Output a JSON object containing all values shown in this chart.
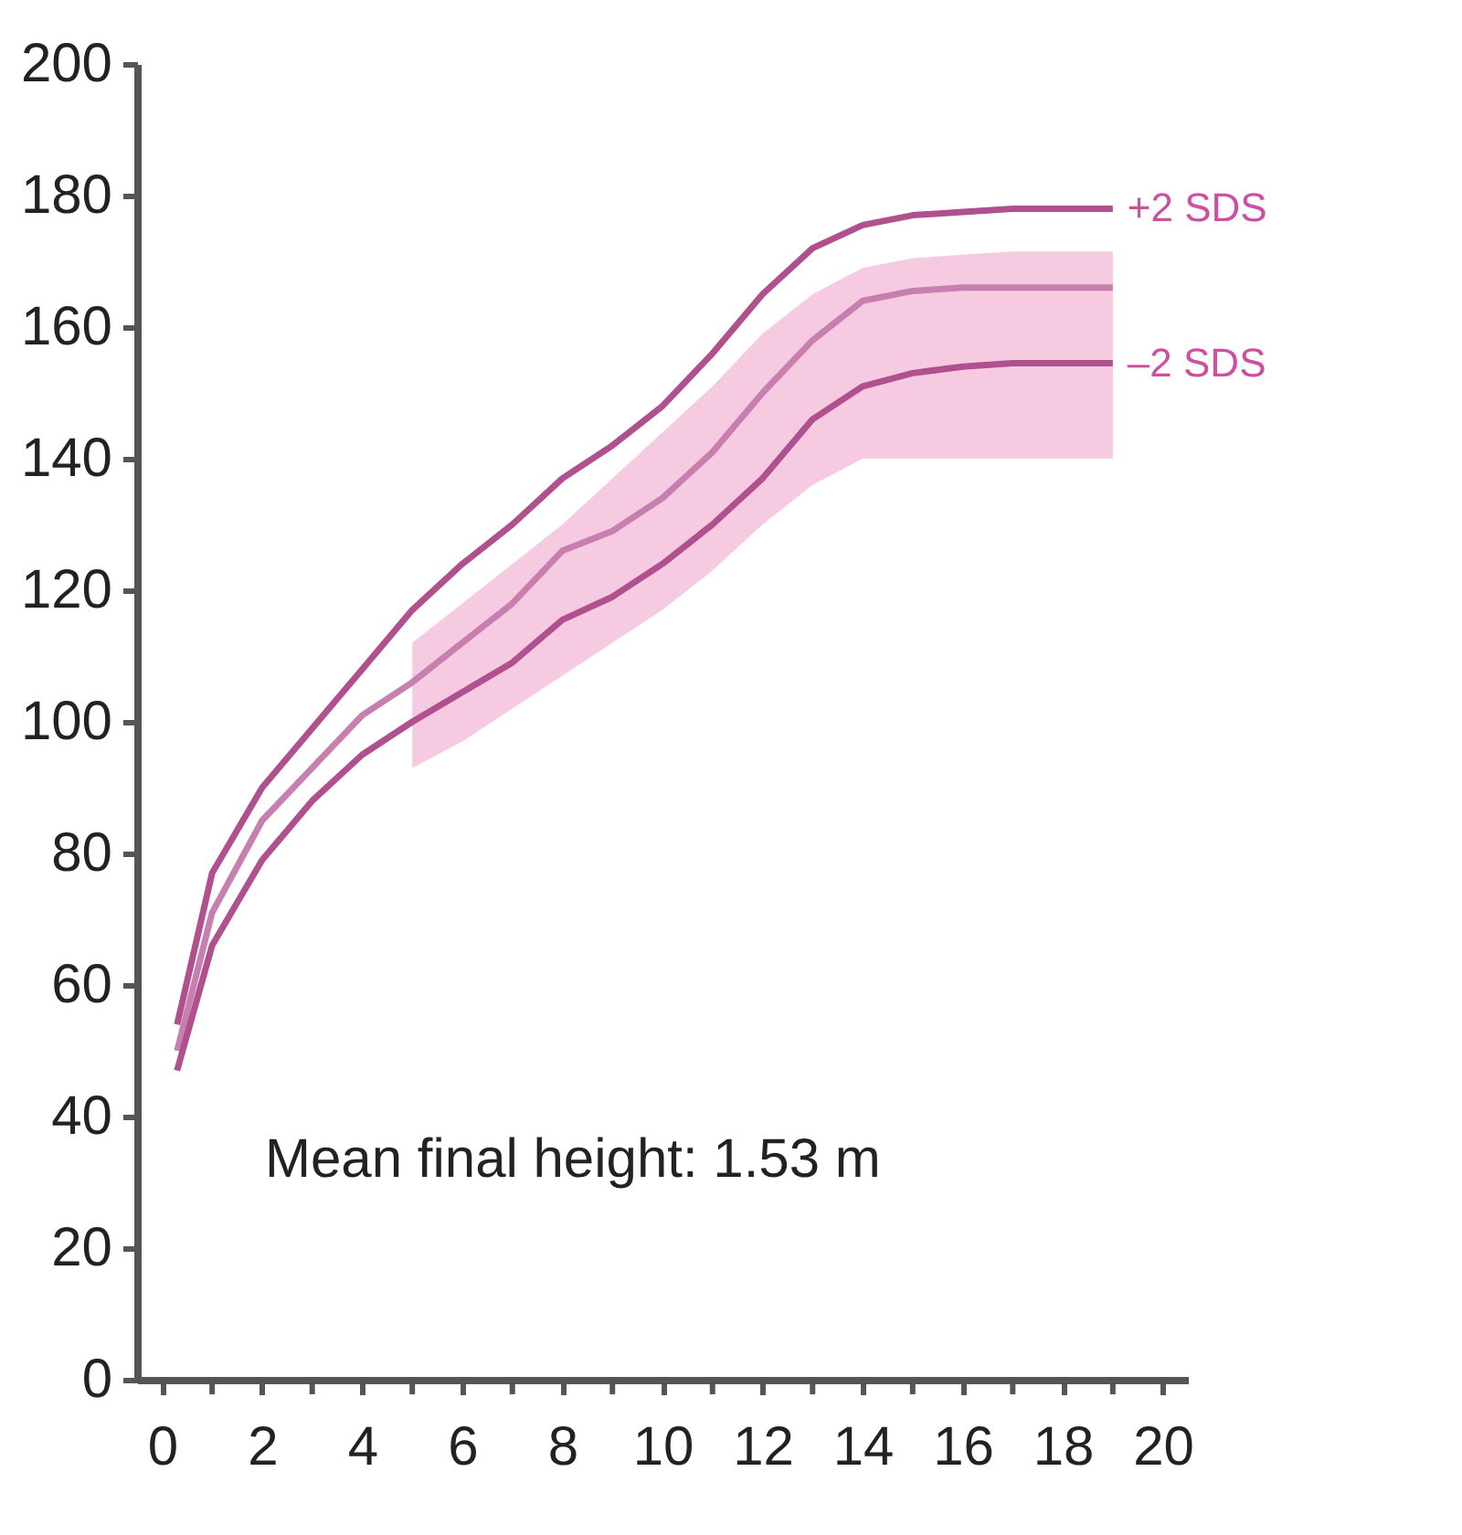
{
  "chart_data": {
    "type": "line",
    "x": [
      0.3,
      1,
      2,
      3,
      4,
      5,
      6,
      7,
      8,
      9,
      10,
      11,
      12,
      13,
      14,
      15,
      16,
      17,
      18,
      19
    ],
    "series": [
      {
        "name": "+2 SDS",
        "color": "#b0508f",
        "values": [
          54,
          77,
          90,
          99,
          108,
          117,
          124,
          130,
          137,
          142,
          148,
          156,
          165,
          172,
          175.5,
          177,
          177.5,
          178,
          178,
          178
        ]
      },
      {
        "color": "#c77fb0",
        "values": [
          50,
          71,
          85,
          93,
          101,
          106,
          112,
          118,
          126,
          129,
          134,
          141,
          150,
          158,
          164,
          165.5,
          166,
          166,
          166,
          166
        ],
        "lower": [
          null,
          null,
          null,
          null,
          null,
          93,
          97,
          102,
          107,
          112,
          117,
          123,
          130,
          136,
          140,
          140,
          140,
          140,
          140,
          140
        ],
        "upper": [
          null,
          null,
          null,
          null,
          null,
          112,
          118,
          124,
          130,
          137,
          144,
          151,
          159,
          165,
          169,
          170.5,
          171,
          171.5,
          171.5,
          171.5
        ]
      },
      {
        "name": "–2 SDS",
        "color": "#b0508f",
        "values": [
          47,
          66,
          79,
          88,
          95,
          100,
          104.5,
          109,
          115.5,
          119,
          124,
          130,
          137,
          146,
          151,
          153,
          154,
          154.5,
          154.5,
          154.5
        ]
      }
    ],
    "xlim": [
      -0.5,
      20.5
    ],
    "xticks": [
      0,
      {
        "value": 1,
        "label": null
      },
      2,
      {
        "value": 3,
        "label": null
      },
      4,
      {
        "value": 5,
        "label": null
      },
      6,
      {
        "value": 7,
        "label": null
      },
      8,
      {
        "value": 9,
        "label": null
      },
      10,
      {
        "value": 11,
        "label": null
      },
      12,
      {
        "value": 13,
        "label": null
      },
      14,
      {
        "value": 15,
        "label": null
      },
      16,
      {
        "value": 17,
        "label": null
      },
      18,
      {
        "value": 19,
        "label": null
      },
      20
    ],
    "ylim": [
      0,
      200
    ],
    "yticks": [
      0,
      20,
      40,
      60,
      80,
      100,
      120,
      140,
      160,
      180,
      200
    ],
    "annotations": [
      "Mean final height: 1.53 m"
    ],
    "grid": false,
    "legend": false,
    "marker": "none",
    "line_style": "solid"
  }
}
